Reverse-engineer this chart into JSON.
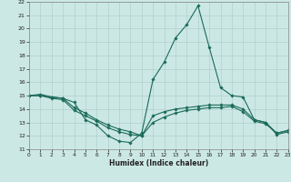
{
  "xlabel": "Humidex (Indice chaleur)",
  "ylabel": "",
  "bg_color": "#cce8e4",
  "grid_color": "#b0d0cc",
  "line_color": "#1a6b5a",
  "xlim": [
    0,
    23
  ],
  "ylim": [
    11,
    22
  ],
  "xticks": [
    0,
    1,
    2,
    3,
    4,
    5,
    6,
    7,
    8,
    9,
    10,
    11,
    12,
    13,
    14,
    15,
    16,
    17,
    18,
    19,
    20,
    21,
    22,
    23
  ],
  "yticks": [
    11,
    12,
    13,
    14,
    15,
    16,
    17,
    18,
    19,
    20,
    21,
    22
  ],
  "series": [
    {
      "x": [
        0,
        1,
        2,
        3,
        4,
        5,
        6,
        7,
        8,
        9,
        10,
        11,
        12,
        13,
        14,
        15,
        16,
        17,
        18,
        19,
        20,
        21,
        22,
        23
      ],
      "y": [
        15,
        15.1,
        14.9,
        14.8,
        14.5,
        13.2,
        12.8,
        12.0,
        11.6,
        11.5,
        12.2,
        16.2,
        17.5,
        19.3,
        20.3,
        21.7,
        18.6,
        15.6,
        15.0,
        14.9,
        13.2,
        13.0,
        12.1,
        12.3
      ]
    },
    {
      "x": [
        0,
        1,
        2,
        3,
        4,
        5,
        6,
        7,
        8,
        9,
        10,
        11,
        12,
        13,
        14,
        15,
        16,
        17,
        18,
        19,
        20,
        21,
        22,
        23
      ],
      "y": [
        15,
        15,
        14.9,
        14.8,
        14.1,
        13.7,
        13.2,
        12.8,
        12.5,
        12.3,
        12.0,
        13.5,
        13.8,
        14.0,
        14.1,
        14.2,
        14.3,
        14.3,
        14.3,
        14.0,
        13.2,
        13.0,
        12.2,
        12.4
      ]
    },
    {
      "x": [
        0,
        1,
        2,
        3,
        4,
        5,
        6,
        7,
        8,
        9,
        10,
        11,
        12,
        13,
        14,
        15,
        16,
        17,
        18,
        19,
        20,
        21,
        22,
        23
      ],
      "y": [
        15,
        15,
        14.8,
        14.7,
        13.9,
        13.5,
        13.1,
        12.6,
        12.3,
        12.1,
        12.0,
        13.0,
        13.4,
        13.7,
        13.9,
        14.0,
        14.1,
        14.1,
        14.2,
        13.8,
        13.1,
        12.9,
        12.2,
        12.4
      ]
    }
  ]
}
